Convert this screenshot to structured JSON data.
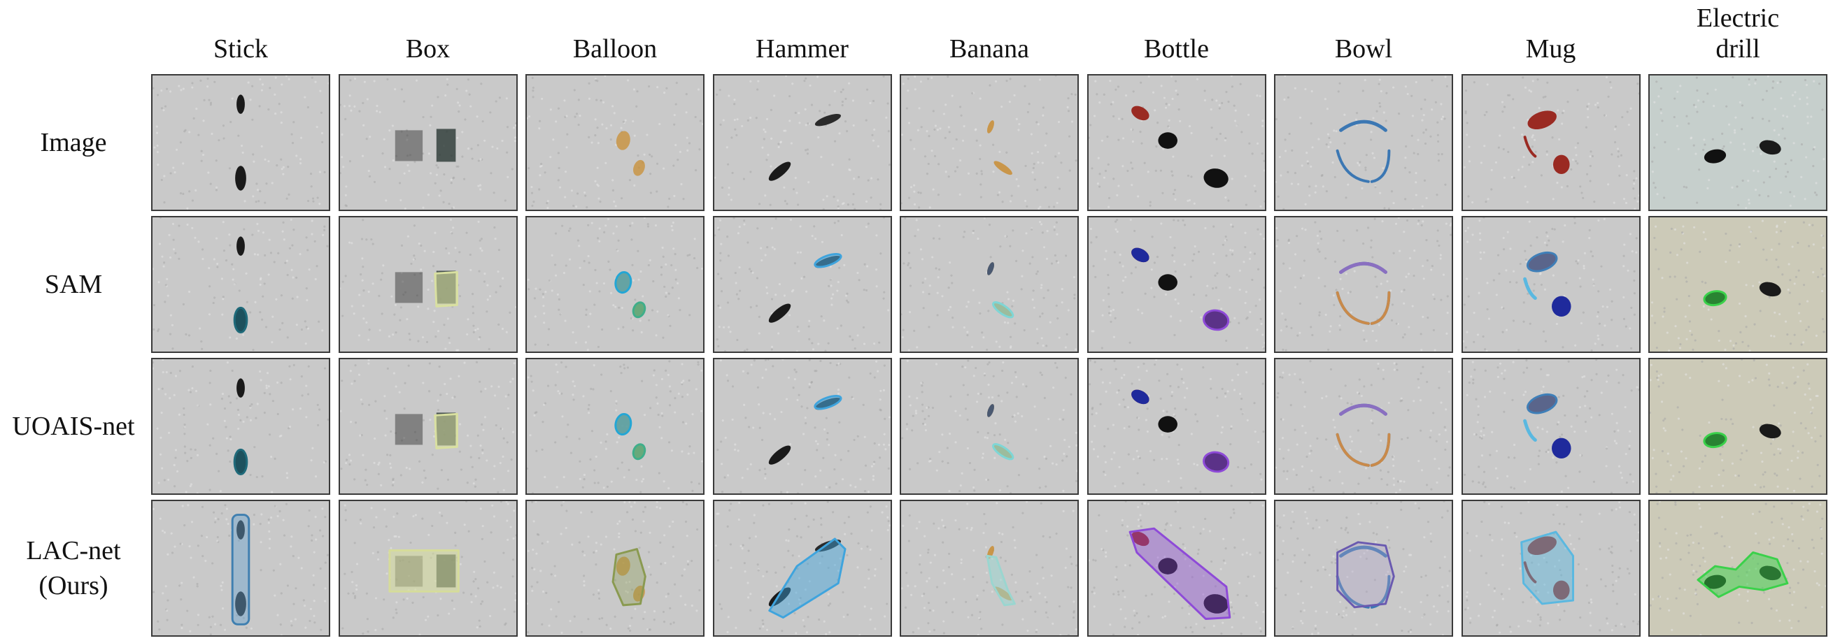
{
  "columns": [
    "Stick",
    "Box",
    "Balloon",
    "Hammer",
    "Banana",
    "Bottle",
    "Bowl",
    "Mug",
    "Electric\ndrill"
  ],
  "rows": [
    "Image",
    "SAM",
    "UOAIS-net",
    "LAC-net\n(Ours)"
  ],
  "colors": {
    "background_gray": "#c9c9c9",
    "electric_drill_tint": "#c6cfcc",
    "sam_blue": "#3fa4dd",
    "purple": "#8e4ad8",
    "green": "#3ad14a",
    "yellow_green": "#d9e0a0",
    "red": "#9a2a22",
    "orange": "#c98a2a",
    "navy": "#1f2a9c"
  }
}
